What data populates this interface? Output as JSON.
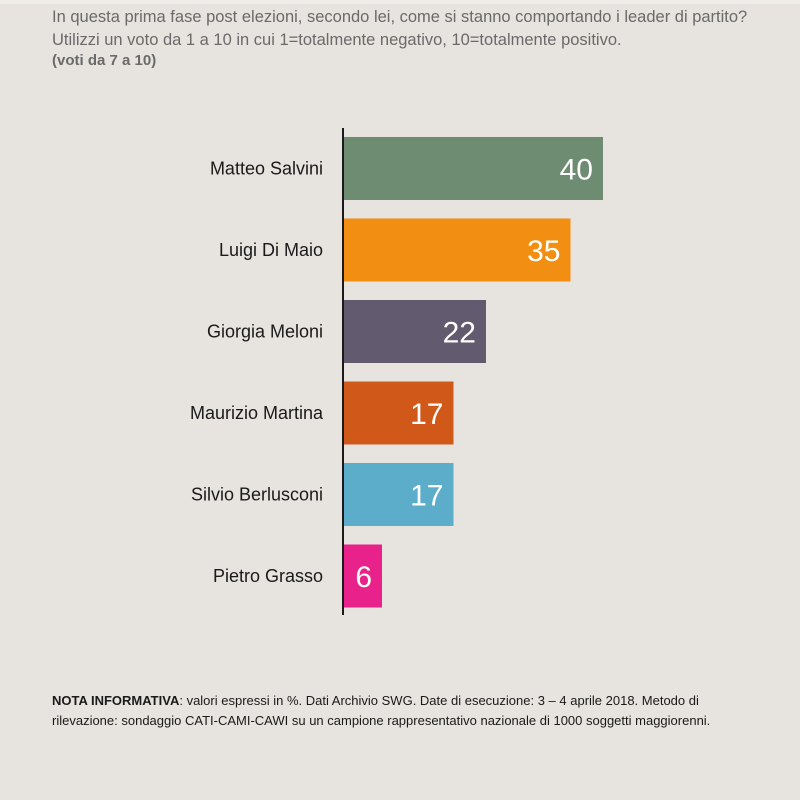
{
  "header": {
    "question": "In questa prima fase post elezioni, secondo lei, come si stanno comportando i leader di partito? Utilizzi un voto da 1 a 10 in cui 1=totalmente negativo, 10=totalmente positivo.",
    "subtitle": "(voti da 7 a 10)"
  },
  "chart_data": {
    "type": "bar",
    "orientation": "horizontal",
    "categories": [
      "Matteo Salvini",
      "Luigi Di Maio",
      "Giorgia Meloni",
      "Maurizio Martina",
      "Silvio Berlusconi",
      "Pietro Grasso"
    ],
    "values": [
      40,
      35,
      22,
      17,
      17,
      6
    ],
    "colors": [
      "#6e8c72",
      "#f28f12",
      "#625a6e",
      "#d05818",
      "#5badc9",
      "#e8228a"
    ],
    "data_labels": true,
    "grid": false
  },
  "note": {
    "label": "NOTA INFORMATIVA",
    "text": ": valori espressi in %. Dati Archivio SWG. Date di esecuzione: 3 – 4 aprile 2018. Metodo di rilevazione: sondaggio CATI-CAMI-CAWI su un campione rappresentativo nazionale di 1000 soggetti maggiorenni."
  }
}
